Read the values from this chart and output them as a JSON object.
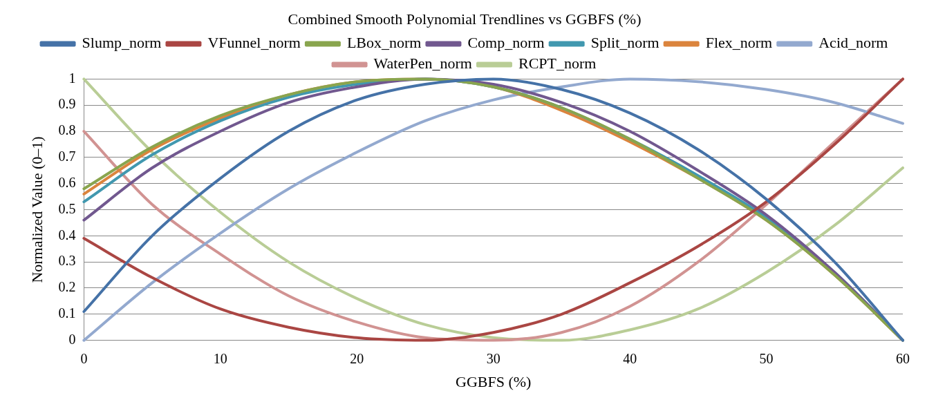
{
  "chart_data": {
    "type": "line",
    "title": "Combined Smooth Polynomial Trendlines vs GGBFS (%)",
    "xlabel": "GGBFS (%)",
    "ylabel": "Normalized Value (0–1)",
    "x": [
      0,
      5,
      10,
      15,
      20,
      25,
      30,
      35,
      40,
      45,
      50,
      55,
      60
    ],
    "xlim": [
      0,
      60
    ],
    "xticks": [
      0,
      10,
      20,
      30,
      40,
      50,
      60
    ],
    "ylim": [
      0,
      1
    ],
    "yticks": [
      0,
      0.1,
      0.2,
      0.3,
      0.4,
      0.5,
      0.6,
      0.7,
      0.8,
      0.9,
      1
    ],
    "grid": "y",
    "legend": "top",
    "marker": "none",
    "line_style": "solid",
    "series": [
      {
        "name": "Slump_norm",
        "color": "#4572a7",
        "values": [
          0.11,
          0.4,
          0.62,
          0.8,
          0.92,
          0.98,
          1.0,
          0.96,
          0.87,
          0.73,
          0.54,
          0.3,
          0
        ]
      },
      {
        "name": "VFunnel_norm",
        "color": "#aa4643",
        "values": [
          0.39,
          0.24,
          0.12,
          0.05,
          0.01,
          0.0,
          0.03,
          0.1,
          0.22,
          0.36,
          0.53,
          0.75,
          1.0
        ]
      },
      {
        "name": "LBox_norm",
        "color": "#89a54e",
        "values": [
          0.58,
          0.74,
          0.86,
          0.94,
          0.99,
          1.0,
          0.97,
          0.89,
          0.77,
          0.62,
          0.46,
          0.25,
          0
        ]
      },
      {
        "name": "Comp_norm",
        "color": "#71588f",
        "values": [
          0.46,
          0.66,
          0.8,
          0.91,
          0.97,
          1.0,
          0.98,
          0.91,
          0.8,
          0.65,
          0.48,
          0.26,
          0
        ]
      },
      {
        "name": "Split_norm",
        "color": "#4198af",
        "values": [
          0.53,
          0.71,
          0.84,
          0.93,
          0.98,
          1.0,
          0.97,
          0.89,
          0.77,
          0.63,
          0.47,
          0.26,
          0
        ]
      },
      {
        "name": "Flex_norm",
        "color": "#db843d",
        "values": [
          0.56,
          0.73,
          0.85,
          0.94,
          0.99,
          1.0,
          0.97,
          0.88,
          0.76,
          0.62,
          0.46,
          0.25,
          0
        ]
      },
      {
        "name": "Acid_norm",
        "color": "#93a9cf",
        "values": [
          0,
          0.22,
          0.41,
          0.58,
          0.72,
          0.84,
          0.92,
          0.97,
          1.0,
          0.99,
          0.96,
          0.91,
          0.83
        ]
      },
      {
        "name": "WaterPen_norm",
        "color": "#d19392",
        "values": [
          0.8,
          0.52,
          0.33,
          0.17,
          0.07,
          0.01,
          0.0,
          0.03,
          0.13,
          0.3,
          0.52,
          0.76,
          1.0
        ]
      },
      {
        "name": "RCPT_norm",
        "color": "#b9cd96",
        "values": [
          1.0,
          0.72,
          0.49,
          0.3,
          0.16,
          0.06,
          0.01,
          0.0,
          0.04,
          0.12,
          0.26,
          0.44,
          0.66
        ]
      }
    ]
  }
}
